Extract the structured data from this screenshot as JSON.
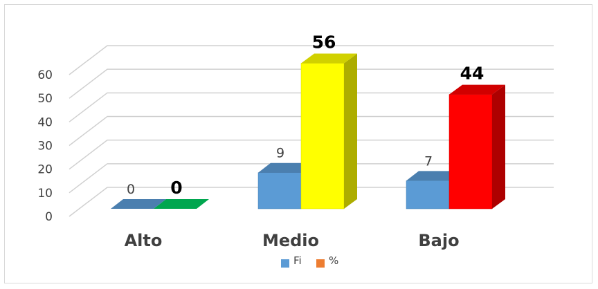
{
  "chart_data": {
    "type": "bar",
    "categories": [
      "Alto",
      "Medio",
      "Bajo"
    ],
    "series": [
      {
        "name": "Fi",
        "values": [
          0,
          9,
          7
        ],
        "color": "#5b9bd5"
      },
      {
        "name": "%",
        "values": [
          0,
          56,
          44
        ],
        "colors": [
          "#00a64f",
          "#ffff00",
          "#ff0000"
        ],
        "legend_color": "#ed7d31"
      }
    ],
    "ylim": [
      0,
      60
    ],
    "yticks": [
      0,
      10,
      20,
      30,
      40,
      50,
      60
    ],
    "title": "",
    "xlabel": "",
    "ylabel": "",
    "grid": true,
    "legend": "bottom",
    "style": "3d-clustered-column"
  }
}
